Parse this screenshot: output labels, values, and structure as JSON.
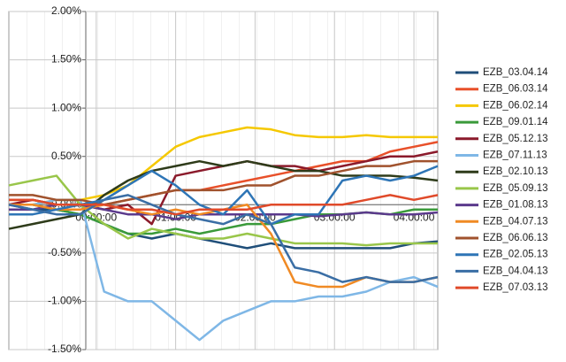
{
  "chart_data": {
    "type": "line",
    "x": [
      -1.1,
      -0.8,
      -0.5,
      -0.2,
      0.1,
      0.4,
      0.7,
      1.0,
      1.3,
      1.6,
      1.9,
      2.2,
      2.5,
      2.8,
      3.1,
      3.4,
      3.7,
      4.0,
      4.3
    ],
    "xlim": [
      -1.1,
      4.3
    ],
    "xticks": [
      {
        "value": 0,
        "label": "00:00:00"
      },
      {
        "value": 1,
        "label": "01:00:00"
      },
      {
        "value": 2,
        "label": "02:00:00"
      },
      {
        "value": 3,
        "label": "03:00:00"
      },
      {
        "value": 4,
        "label": "04:00:00"
      }
    ],
    "ylim": [
      -1.5,
      2
    ],
    "yticks": [
      {
        "value": -1.5,
        "label": "-1.50%"
      },
      {
        "value": -1,
        "label": "-1.00%"
      },
      {
        "value": -0.5,
        "label": "-0.50%"
      },
      {
        "value": 0,
        "label": "0.00%"
      },
      {
        "value": 0.5,
        "label": "0.50%"
      },
      {
        "value": 1,
        "label": "1.00%"
      },
      {
        "value": 1.5,
        "label": "1.50%"
      },
      {
        "value": 2,
        "label": "2.00%"
      }
    ],
    "grid": true,
    "legend": "right",
    "series": [
      {
        "name": "EZB_03.04.14",
        "color": "#1f4e79",
        "values": [
          0,
          -0.05,
          -0.05,
          -0.1,
          -0.2,
          -0.3,
          -0.35,
          -0.3,
          -0.35,
          -0.4,
          -0.45,
          -0.4,
          -0.45,
          -0.45,
          -0.45,
          -0.45,
          -0.45,
          -0.4,
          -0.38
        ]
      },
      {
        "name": "EZB_06.03.14",
        "color": "#e8502a",
        "values": [
          0.05,
          0.05,
          0,
          0,
          0,
          0.05,
          0.1,
          0.15,
          0.15,
          0.2,
          0.25,
          0.3,
          0.35,
          0.4,
          0.45,
          0.45,
          0.55,
          0.6,
          0.65
        ]
      },
      {
        "name": "EZB_06.02.14",
        "color": "#f5c800",
        "values": [
          0,
          0,
          0.05,
          0.05,
          0.1,
          0.2,
          0.4,
          0.6,
          0.7,
          0.75,
          0.8,
          0.78,
          0.72,
          0.7,
          0.7,
          0.72,
          0.7,
          0.7,
          0.7
        ]
      },
      {
        "name": "EZB_09.01.14",
        "color": "#3a9a3a",
        "values": [
          0,
          0,
          -0.05,
          -0.1,
          -0.2,
          -0.3,
          -0.3,
          -0.25,
          -0.3,
          -0.25,
          -0.2,
          -0.2,
          -0.15,
          -0.1,
          -0.1,
          -0.08,
          -0.1,
          -0.05,
          -0.05
        ]
      },
      {
        "name": "EZB_05.12.13",
        "color": "#8b1a2b",
        "values": [
          0,
          0.05,
          0,
          0,
          -0.05,
          0,
          -0.2,
          0.3,
          0.35,
          0.4,
          0.45,
          0.4,
          0.4,
          0.35,
          0.4,
          0.45,
          0.5,
          0.5,
          0.55
        ]
      },
      {
        "name": "EZB_07.11.13",
        "color": "#7fb7e6",
        "values": [
          0,
          0,
          0.05,
          0.05,
          -0.9,
          -1.0,
          -1.0,
          -1.2,
          -1.4,
          -1.2,
          -1.1,
          -1.0,
          -1.0,
          -0.95,
          -0.95,
          -0.9,
          -0.8,
          -0.75,
          -0.85
        ]
      },
      {
        "name": "EZB_02.10.13",
        "color": "#2e3b1a",
        "values": [
          -0.25,
          -0.2,
          -0.15,
          -0.1,
          0.1,
          0.25,
          0.35,
          0.4,
          0.45,
          0.4,
          0.45,
          0.4,
          0.35,
          0.35,
          0.3,
          0.3,
          0.3,
          0.28,
          0.25
        ]
      },
      {
        "name": "EZB_05.09.13",
        "color": "#99c64a",
        "values": [
          0.2,
          0.25,
          0.3,
          0,
          -0.2,
          -0.35,
          -0.25,
          -0.3,
          -0.35,
          -0.35,
          -0.3,
          -0.35,
          -0.4,
          -0.4,
          -0.4,
          -0.42,
          -0.4,
          -0.4,
          -0.4
        ]
      },
      {
        "name": "EZB_01.08.13",
        "color": "#5b3a8c",
        "values": [
          -0.05,
          -0.05,
          0,
          0,
          -0.05,
          -0.1,
          -0.1,
          -0.15,
          -0.1,
          -0.1,
          -0.1,
          -0.1,
          -0.1,
          -0.12,
          -0.1,
          -0.08,
          -0.1,
          -0.1,
          -0.08
        ]
      },
      {
        "name": "EZB_04.07.13",
        "color": "#f08a24",
        "values": [
          0,
          0,
          -0.05,
          -0.05,
          0,
          -0.05,
          -0.1,
          -0.05,
          -0.1,
          -0.05,
          0,
          -0.3,
          -0.8,
          -0.85,
          -0.85,
          -0.75,
          -0.8,
          -0.8,
          -0.75
        ]
      },
      {
        "name": "EZB_06.06.13",
        "color": "#a0522d",
        "values": [
          0.1,
          0.1,
          0.05,
          0.05,
          0,
          0.05,
          0.1,
          0.15,
          0.15,
          0.15,
          0.2,
          0.2,
          0.3,
          0.3,
          0.35,
          0.4,
          0.4,
          0.45,
          0.45
        ]
      },
      {
        "name": "EZB_02.05.13",
        "color": "#2e75b6",
        "values": [
          -0.1,
          -0.1,
          -0.05,
          0,
          0.05,
          0.2,
          0.35,
          0.2,
          0,
          -0.1,
          0.15,
          -0.2,
          -0.1,
          -0.1,
          0.25,
          0.3,
          0.25,
          0.3,
          0.4
        ]
      },
      {
        "name": "EZB_04.04.13",
        "color": "#3a6ea5",
        "values": [
          0,
          -0.05,
          -0.1,
          -0.1,
          0.05,
          0.1,
          0,
          -0.1,
          -0.15,
          -0.2,
          -0.1,
          -0.2,
          -0.65,
          -0.7,
          -0.8,
          -0.75,
          -0.8,
          -0.8,
          -0.75
        ]
      },
      {
        "name": "EZB_07.03.13",
        "color": "#e04a2a",
        "values": [
          0.05,
          0.05,
          0,
          0,
          0,
          -0.05,
          -0.05,
          -0.1,
          -0.05,
          -0.05,
          -0.05,
          0,
          0,
          0,
          0,
          0.05,
          0.1,
          0.05,
          0.1
        ]
      }
    ]
  }
}
